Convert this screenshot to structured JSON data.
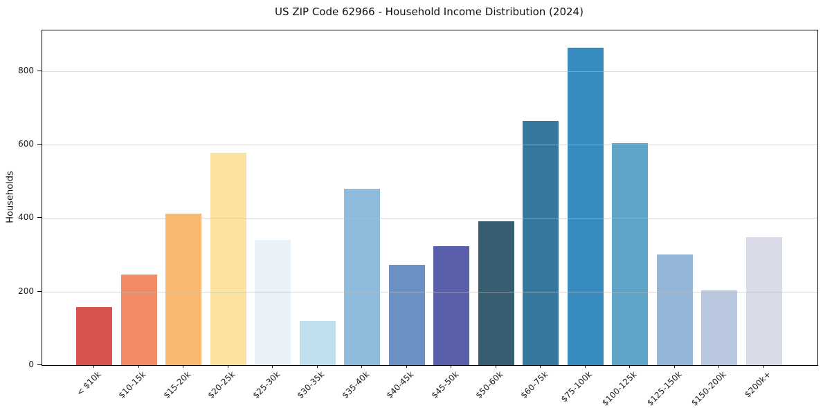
{
  "chart_data": {
    "type": "bar",
    "title": "US ZIP Code 62966 - Household Income Distribution (2024)",
    "xlabel": "",
    "ylabel": "Households",
    "categories": [
      "< $10k",
      "$10-15k",
      "$15-20k",
      "$20-25k",
      "$25-30k",
      "$30-35k",
      "$35-40k",
      "$40-45k",
      "$45-50k",
      "$50-60k",
      "$60-75k",
      "$75-100k",
      "$100-125k",
      "$125-150k",
      "$150-200k",
      "$200k+"
    ],
    "values": [
      158,
      247,
      412,
      577,
      341,
      120,
      480,
      273,
      324,
      391,
      664,
      863,
      603,
      301,
      203,
      348
    ],
    "colors": [
      "#d6534e",
      "#f28a64",
      "#fbb871",
      "#fce29e",
      "#e7f1f7",
      "#bfe0ee",
      "#8fbcdc",
      "#6b90c3",
      "#5a5fac",
      "#365e70",
      "#36789e",
      "#388bbf",
      "#5ea5c8",
      "#93b5d8",
      "#b9c7de",
      "#d9dae7"
    ],
    "yticks": [
      0,
      200,
      400,
      600,
      800
    ],
    "ylim": [
      0,
      910
    ],
    "grid": "horizontal",
    "gridline_color": "rgba(189,189,189,0.55)",
    "axis_color": "#000000",
    "background": "#ffffff",
    "legend": "none",
    "x_tick_rotation_deg": 45
  }
}
